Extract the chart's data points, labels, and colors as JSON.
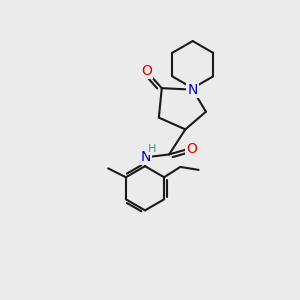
{
  "background_color": "#ebebeb",
  "bond_color": "#1a1a1a",
  "atom_colors": {
    "N": "#0000cc",
    "O": "#dd0000",
    "H": "#4a9090",
    "C": "#1a1a1a"
  },
  "font_size_atom": 10,
  "fig_size": [
    3.0,
    3.0
  ],
  "dpi": 100
}
